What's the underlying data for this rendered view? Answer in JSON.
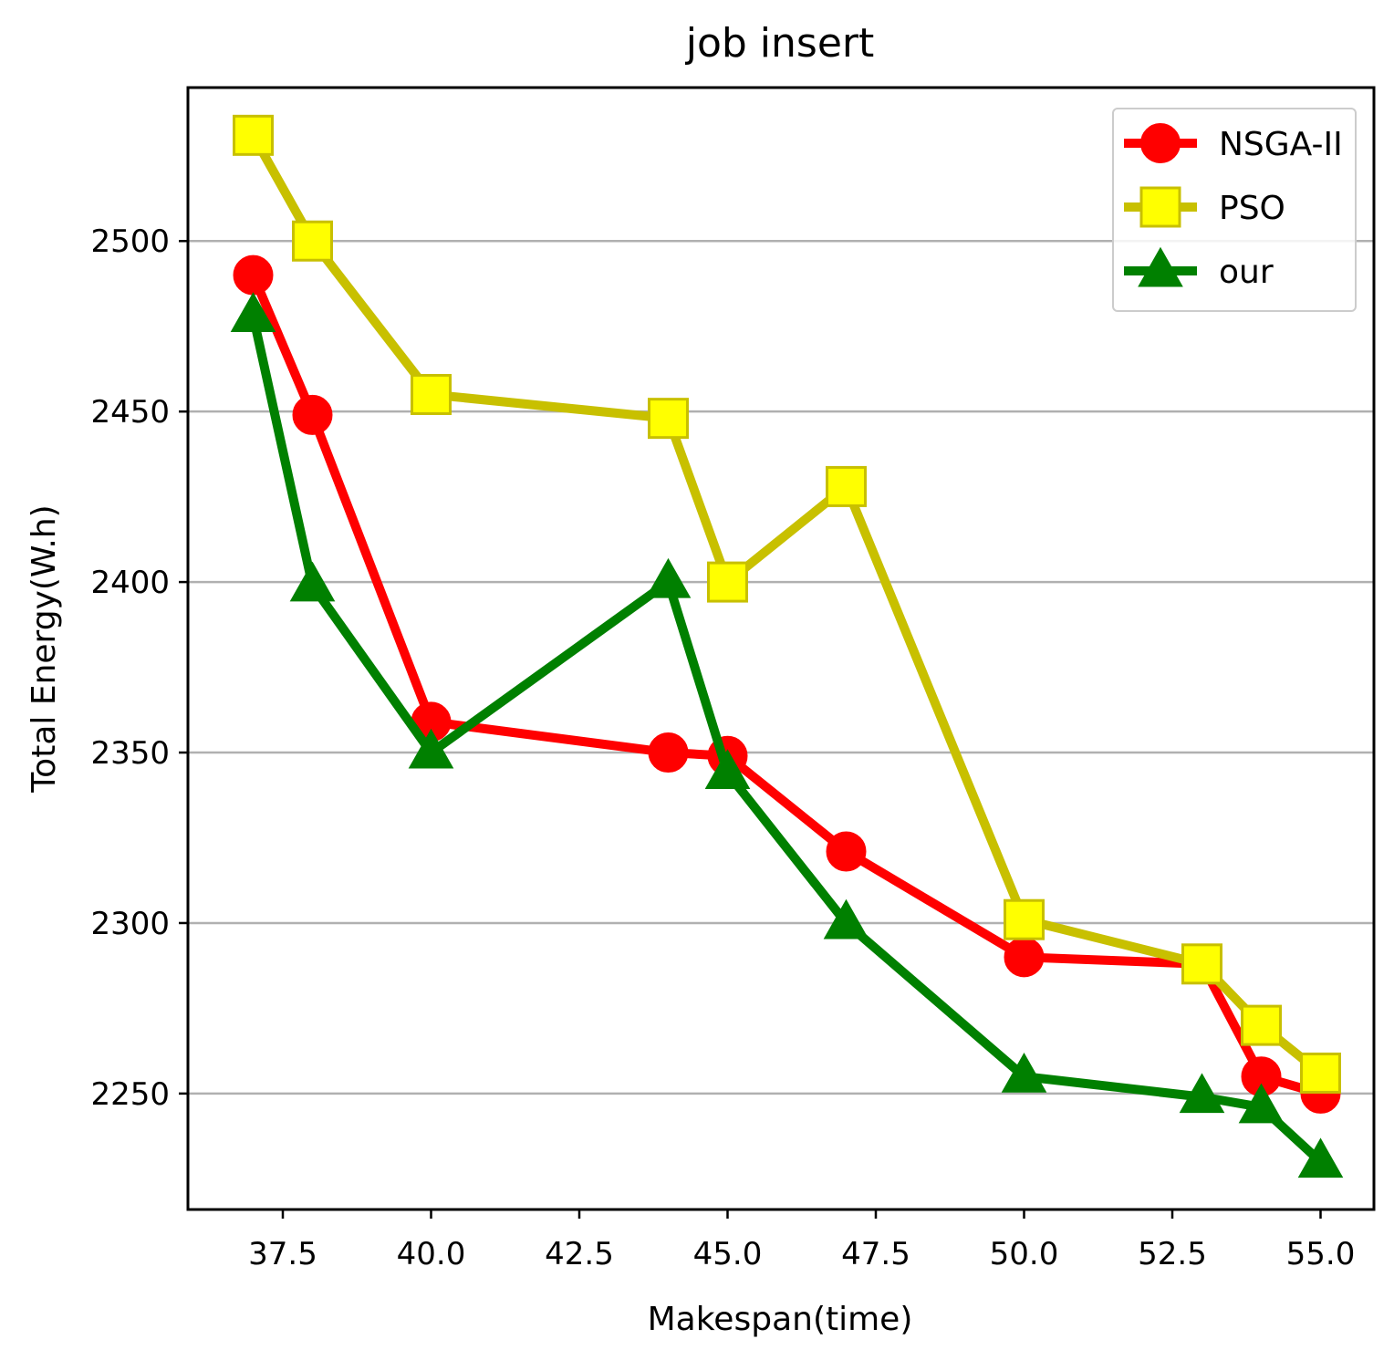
{
  "chart_data": {
    "type": "line",
    "title": "job insert",
    "xlabel": "Makespan(time)",
    "ylabel": "Total Energy(W.h)",
    "xlim": [
      35.9,
      55.9
    ],
    "ylim": [
      2216,
      2545
    ],
    "xticks": [
      37.5,
      40.0,
      42.5,
      45.0,
      47.5,
      50.0,
      52.5,
      55.0
    ],
    "xtick_labels": [
      "37.5",
      "40.0",
      "42.5",
      "45.0",
      "47.5",
      "50.0",
      "52.5",
      "55.0"
    ],
    "yticks": [
      2250,
      2300,
      2350,
      2400,
      2450,
      2500
    ],
    "ytick_labels": [
      "2250",
      "2300",
      "2350",
      "2400",
      "2450",
      "2500"
    ],
    "grid": "horizontal",
    "legend_position": "top-right",
    "series": [
      {
        "name": "NSGA-II",
        "color": "#ff0000",
        "marker": "circle",
        "x": [
          37,
          38,
          40,
          44,
          45,
          47,
          50,
          53,
          54,
          55
        ],
        "y": [
          2490,
          2449,
          2359,
          2350,
          2349,
          2321,
          2290,
          2288,
          2255,
          2250
        ]
      },
      {
        "name": "PSO",
        "color": "#c8c000",
        "marker_fill": "#ffff00",
        "marker": "square",
        "x": [
          37,
          38,
          40,
          44,
          45,
          47,
          50,
          53,
          54,
          55
        ],
        "y": [
          2531,
          2500,
          2455,
          2448,
          2400,
          2428,
          2301,
          2288,
          2270,
          2256
        ]
      },
      {
        "name": "our",
        "color": "#008000",
        "marker": "triangle",
        "x": [
          37,
          38,
          40,
          44,
          45,
          47,
          50,
          53,
          54,
          55
        ],
        "y": [
          2478,
          2399,
          2350,
          2400,
          2344,
          2300,
          2255,
          2249,
          2246,
          2230
        ]
      }
    ]
  }
}
